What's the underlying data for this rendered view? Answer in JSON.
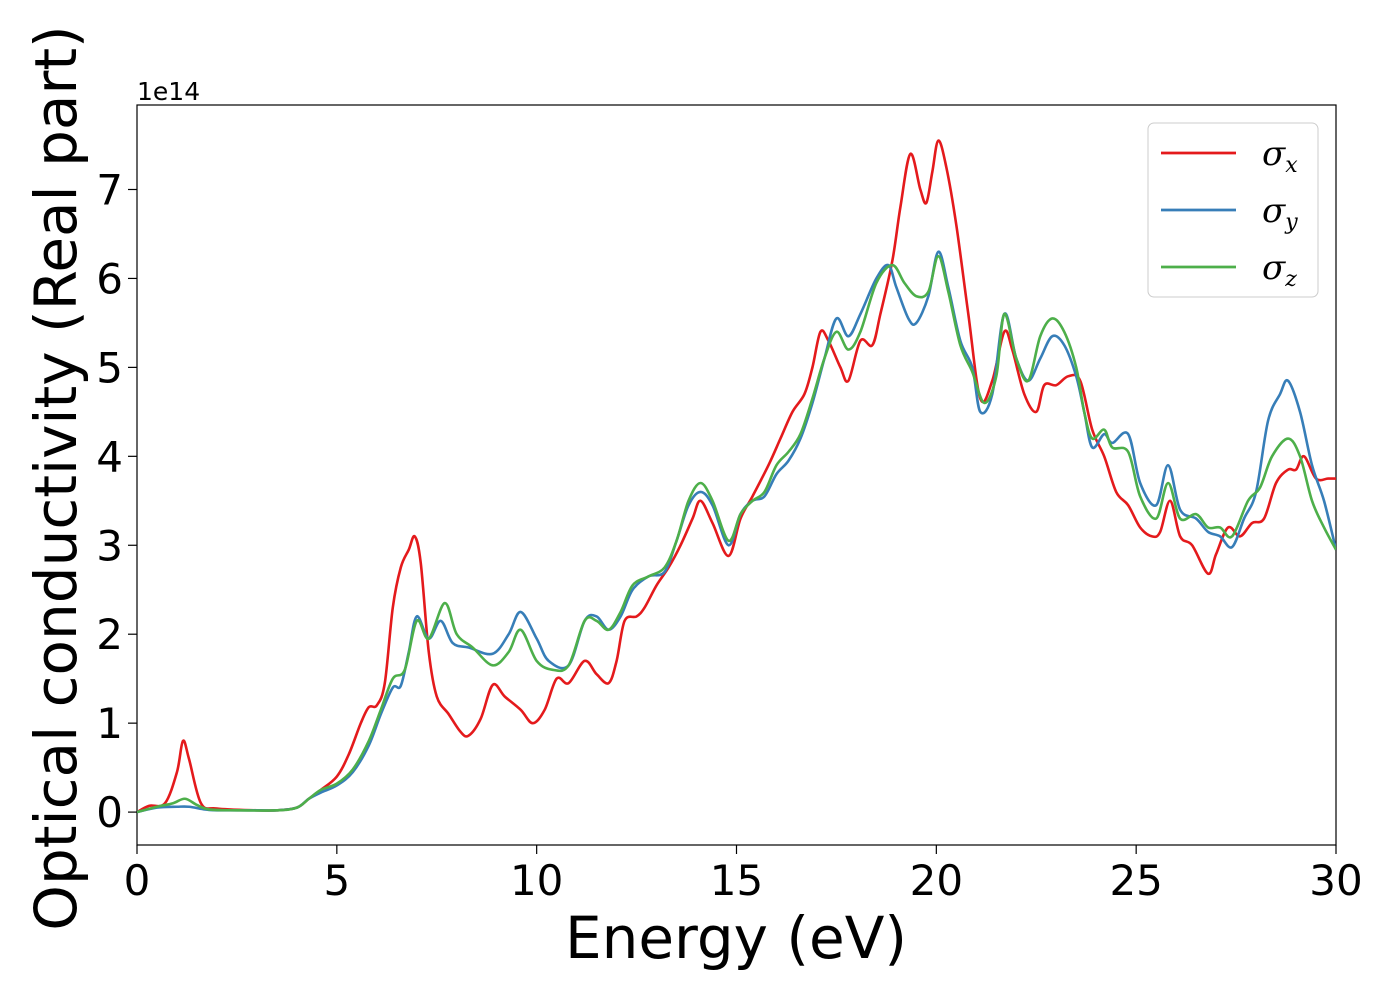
{
  "chart_data": {
    "type": "line",
    "xlabel": "Energy (eV)",
    "ylabel": "Optical conductivity (Real part)",
    "y_offset_text": "1e14",
    "xlim": [
      0,
      30
    ],
    "ylim": [
      -0.37,
      7.95
    ],
    "x_ticks": [
      0,
      5,
      10,
      15,
      20,
      25,
      30
    ],
    "y_ticks": [
      0,
      1,
      2,
      3,
      4,
      5,
      6,
      7
    ],
    "grid": false,
    "legend_position": "top-right",
    "series": [
      {
        "name": "σx",
        "symbol": "σ",
        "subscript": "x",
        "color": "#e41a1c",
        "points": [
          [
            0,
            0
          ],
          [
            0.3,
            0.07
          ],
          [
            0.7,
            0.1
          ],
          [
            1.0,
            0.45
          ],
          [
            1.15,
            0.8
          ],
          [
            1.3,
            0.6
          ],
          [
            1.6,
            0.1
          ],
          [
            2,
            0.04
          ],
          [
            3,
            0.02
          ],
          [
            3.5,
            0.02
          ],
          [
            4,
            0.05
          ],
          [
            4.3,
            0.15
          ],
          [
            4.6,
            0.25
          ],
          [
            5,
            0.4
          ],
          [
            5.3,
            0.65
          ],
          [
            5.6,
            1.0
          ],
          [
            5.8,
            1.18
          ],
          [
            6.0,
            1.2
          ],
          [
            6.2,
            1.45
          ],
          [
            6.4,
            2.3
          ],
          [
            6.6,
            2.75
          ],
          [
            6.8,
            2.95
          ],
          [
            6.95,
            3.1
          ],
          [
            7.1,
            2.8
          ],
          [
            7.3,
            1.8
          ],
          [
            7.5,
            1.3
          ],
          [
            7.8,
            1.1
          ],
          [
            8.1,
            0.9
          ],
          [
            8.3,
            0.86
          ],
          [
            8.6,
            1.05
          ],
          [
            8.9,
            1.43
          ],
          [
            9.2,
            1.3
          ],
          [
            9.6,
            1.15
          ],
          [
            9.9,
            1.0
          ],
          [
            10.2,
            1.15
          ],
          [
            10.5,
            1.5
          ],
          [
            10.8,
            1.45
          ],
          [
            11.2,
            1.7
          ],
          [
            11.5,
            1.55
          ],
          [
            11.8,
            1.45
          ],
          [
            12.0,
            1.7
          ],
          [
            12.2,
            2.15
          ],
          [
            12.5,
            2.2
          ],
          [
            12.7,
            2.3
          ],
          [
            13.0,
            2.55
          ],
          [
            13.3,
            2.75
          ],
          [
            13.6,
            3.0
          ],
          [
            13.9,
            3.3
          ],
          [
            14.1,
            3.5
          ],
          [
            14.4,
            3.25
          ],
          [
            14.8,
            2.88
          ],
          [
            15.1,
            3.3
          ],
          [
            15.4,
            3.55
          ],
          [
            15.8,
            3.9
          ],
          [
            16.1,
            4.2
          ],
          [
            16.4,
            4.5
          ],
          [
            16.7,
            4.7
          ],
          [
            16.9,
            5.0
          ],
          [
            17.1,
            5.4
          ],
          [
            17.3,
            5.3
          ],
          [
            17.6,
            5.0
          ],
          [
            17.8,
            4.85
          ],
          [
            18.1,
            5.3
          ],
          [
            18.4,
            5.25
          ],
          [
            18.6,
            5.6
          ],
          [
            18.9,
            6.2
          ],
          [
            19.1,
            6.8
          ],
          [
            19.35,
            7.4
          ],
          [
            19.6,
            7.0
          ],
          [
            19.75,
            6.85
          ],
          [
            19.9,
            7.2
          ],
          [
            20.05,
            7.55
          ],
          [
            20.25,
            7.25
          ],
          [
            20.5,
            6.6
          ],
          [
            20.8,
            5.6
          ],
          [
            21.1,
            4.65
          ],
          [
            21.4,
            4.85
          ],
          [
            21.7,
            5.4
          ],
          [
            21.9,
            5.2
          ],
          [
            22.2,
            4.7
          ],
          [
            22.5,
            4.5
          ],
          [
            22.7,
            4.8
          ],
          [
            23.0,
            4.8
          ],
          [
            23.3,
            4.9
          ],
          [
            23.6,
            4.85
          ],
          [
            23.9,
            4.3
          ],
          [
            24.2,
            4.0
          ],
          [
            24.5,
            3.6
          ],
          [
            24.8,
            3.45
          ],
          [
            25.1,
            3.2
          ],
          [
            25.4,
            3.1
          ],
          [
            25.6,
            3.15
          ],
          [
            25.85,
            3.5
          ],
          [
            26.1,
            3.1
          ],
          [
            26.4,
            3.0
          ],
          [
            26.8,
            2.68
          ],
          [
            27.0,
            2.9
          ],
          [
            27.3,
            3.2
          ],
          [
            27.6,
            3.1
          ],
          [
            27.9,
            3.25
          ],
          [
            28.2,
            3.3
          ],
          [
            28.5,
            3.7
          ],
          [
            28.8,
            3.85
          ],
          [
            29.0,
            3.85
          ],
          [
            29.2,
            4.0
          ],
          [
            29.5,
            3.75
          ],
          [
            29.8,
            3.75
          ],
          [
            30,
            3.75
          ]
        ]
      },
      {
        "name": "σy",
        "symbol": "σ",
        "subscript": "y",
        "color": "#377eb8",
        "points": [
          [
            0,
            0
          ],
          [
            0.5,
            0.05
          ],
          [
            1.0,
            0.06
          ],
          [
            1.3,
            0.06
          ],
          [
            1.7,
            0.03
          ],
          [
            2,
            0.02
          ],
          [
            3,
            0.02
          ],
          [
            3.5,
            0.02
          ],
          [
            4,
            0.05
          ],
          [
            4.3,
            0.15
          ],
          [
            4.6,
            0.22
          ],
          [
            5,
            0.3
          ],
          [
            5.4,
            0.45
          ],
          [
            5.8,
            0.75
          ],
          [
            6.1,
            1.1
          ],
          [
            6.4,
            1.4
          ],
          [
            6.6,
            1.42
          ],
          [
            6.8,
            1.8
          ],
          [
            7.0,
            2.2
          ],
          [
            7.3,
            1.95
          ],
          [
            7.6,
            2.15
          ],
          [
            7.9,
            1.9
          ],
          [
            8.3,
            1.85
          ],
          [
            8.9,
            1.78
          ],
          [
            9.3,
            2.0
          ],
          [
            9.6,
            2.25
          ],
          [
            10.0,
            1.95
          ],
          [
            10.3,
            1.7
          ],
          [
            10.8,
            1.65
          ],
          [
            11.2,
            2.15
          ],
          [
            11.5,
            2.2
          ],
          [
            11.8,
            2.05
          ],
          [
            12.1,
            2.2
          ],
          [
            12.4,
            2.5
          ],
          [
            12.8,
            2.65
          ],
          [
            13.2,
            2.7
          ],
          [
            13.5,
            3.05
          ],
          [
            13.8,
            3.45
          ],
          [
            14.1,
            3.6
          ],
          [
            14.4,
            3.45
          ],
          [
            14.8,
            3.0
          ],
          [
            15.1,
            3.35
          ],
          [
            15.4,
            3.5
          ],
          [
            15.7,
            3.55
          ],
          [
            16.0,
            3.8
          ],
          [
            16.3,
            3.95
          ],
          [
            16.6,
            4.2
          ],
          [
            16.9,
            4.6
          ],
          [
            17.2,
            5.1
          ],
          [
            17.5,
            5.55
          ],
          [
            17.8,
            5.35
          ],
          [
            18.1,
            5.6
          ],
          [
            18.5,
            6.0
          ],
          [
            18.8,
            6.15
          ],
          [
            19.0,
            5.9
          ],
          [
            19.3,
            5.55
          ],
          [
            19.5,
            5.5
          ],
          [
            19.8,
            5.8
          ],
          [
            20.05,
            6.3
          ],
          [
            20.3,
            5.9
          ],
          [
            20.6,
            5.3
          ],
          [
            20.9,
            5.0
          ],
          [
            21.1,
            4.5
          ],
          [
            21.4,
            4.7
          ],
          [
            21.7,
            5.6
          ],
          [
            22.0,
            5.1
          ],
          [
            22.3,
            4.85
          ],
          [
            22.6,
            5.1
          ],
          [
            22.9,
            5.35
          ],
          [
            23.2,
            5.25
          ],
          [
            23.5,
            4.9
          ],
          [
            23.7,
            4.5
          ],
          [
            23.9,
            4.1
          ],
          [
            24.2,
            4.25
          ],
          [
            24.4,
            4.15
          ],
          [
            24.8,
            4.25
          ],
          [
            25.1,
            3.7
          ],
          [
            25.5,
            3.45
          ],
          [
            25.8,
            3.9
          ],
          [
            26.1,
            3.4
          ],
          [
            26.5,
            3.3
          ],
          [
            26.8,
            3.15
          ],
          [
            27.1,
            3.1
          ],
          [
            27.4,
            2.98
          ],
          [
            27.7,
            3.3
          ],
          [
            28.0,
            3.6
          ],
          [
            28.3,
            4.4
          ],
          [
            28.6,
            4.7
          ],
          [
            28.8,
            4.85
          ],
          [
            29.1,
            4.5
          ],
          [
            29.4,
            3.9
          ],
          [
            29.7,
            3.5
          ],
          [
            30,
            2.95
          ]
        ]
      },
      {
        "name": "σz",
        "symbol": "σ",
        "subscript": "z",
        "color": "#4daf4a",
        "points": [
          [
            0,
            0
          ],
          [
            0.5,
            0.06
          ],
          [
            0.9,
            0.1
          ],
          [
            1.2,
            0.15
          ],
          [
            1.5,
            0.08
          ],
          [
            1.8,
            0.03
          ],
          [
            2.5,
            0.02
          ],
          [
            3.5,
            0.02
          ],
          [
            4,
            0.05
          ],
          [
            4.3,
            0.15
          ],
          [
            4.6,
            0.25
          ],
          [
            5,
            0.32
          ],
          [
            5.4,
            0.48
          ],
          [
            5.8,
            0.8
          ],
          [
            6.1,
            1.15
          ],
          [
            6.4,
            1.5
          ],
          [
            6.7,
            1.6
          ],
          [
            7.0,
            2.15
          ],
          [
            7.3,
            1.95
          ],
          [
            7.7,
            2.35
          ],
          [
            8.0,
            2.0
          ],
          [
            8.4,
            1.85
          ],
          [
            8.9,
            1.65
          ],
          [
            9.3,
            1.8
          ],
          [
            9.6,
            2.05
          ],
          [
            10.0,
            1.7
          ],
          [
            10.4,
            1.6
          ],
          [
            10.8,
            1.65
          ],
          [
            11.2,
            2.15
          ],
          [
            11.5,
            2.15
          ],
          [
            11.8,
            2.05
          ],
          [
            12.1,
            2.25
          ],
          [
            12.4,
            2.55
          ],
          [
            12.8,
            2.65
          ],
          [
            13.2,
            2.75
          ],
          [
            13.5,
            3.05
          ],
          [
            13.8,
            3.5
          ],
          [
            14.1,
            3.7
          ],
          [
            14.4,
            3.5
          ],
          [
            14.8,
            3.05
          ],
          [
            15.1,
            3.35
          ],
          [
            15.4,
            3.5
          ],
          [
            15.7,
            3.6
          ],
          [
            16.0,
            3.9
          ],
          [
            16.3,
            4.05
          ],
          [
            16.6,
            4.25
          ],
          [
            16.9,
            4.65
          ],
          [
            17.2,
            5.1
          ],
          [
            17.5,
            5.4
          ],
          [
            17.8,
            5.2
          ],
          [
            18.1,
            5.4
          ],
          [
            18.5,
            5.95
          ],
          [
            18.9,
            6.15
          ],
          [
            19.2,
            5.95
          ],
          [
            19.5,
            5.8
          ],
          [
            19.8,
            5.85
          ],
          [
            20.05,
            6.25
          ],
          [
            20.3,
            5.85
          ],
          [
            20.6,
            5.25
          ],
          [
            20.9,
            4.95
          ],
          [
            21.2,
            4.6
          ],
          [
            21.5,
            4.9
          ],
          [
            21.7,
            5.6
          ],
          [
            22.0,
            5.1
          ],
          [
            22.3,
            4.85
          ],
          [
            22.6,
            5.35
          ],
          [
            22.9,
            5.55
          ],
          [
            23.2,
            5.4
          ],
          [
            23.5,
            5.0
          ],
          [
            23.7,
            4.5
          ],
          [
            23.9,
            4.2
          ],
          [
            24.2,
            4.3
          ],
          [
            24.4,
            4.1
          ],
          [
            24.8,
            4.05
          ],
          [
            25.1,
            3.55
          ],
          [
            25.5,
            3.3
          ],
          [
            25.8,
            3.7
          ],
          [
            26.1,
            3.3
          ],
          [
            26.5,
            3.35
          ],
          [
            26.8,
            3.2
          ],
          [
            27.1,
            3.2
          ],
          [
            27.4,
            3.1
          ],
          [
            27.8,
            3.5
          ],
          [
            28.1,
            3.65
          ],
          [
            28.4,
            4.0
          ],
          [
            28.8,
            4.2
          ],
          [
            29.1,
            4.0
          ],
          [
            29.4,
            3.5
          ],
          [
            29.7,
            3.2
          ],
          [
            30,
            2.95
          ]
        ]
      }
    ]
  }
}
